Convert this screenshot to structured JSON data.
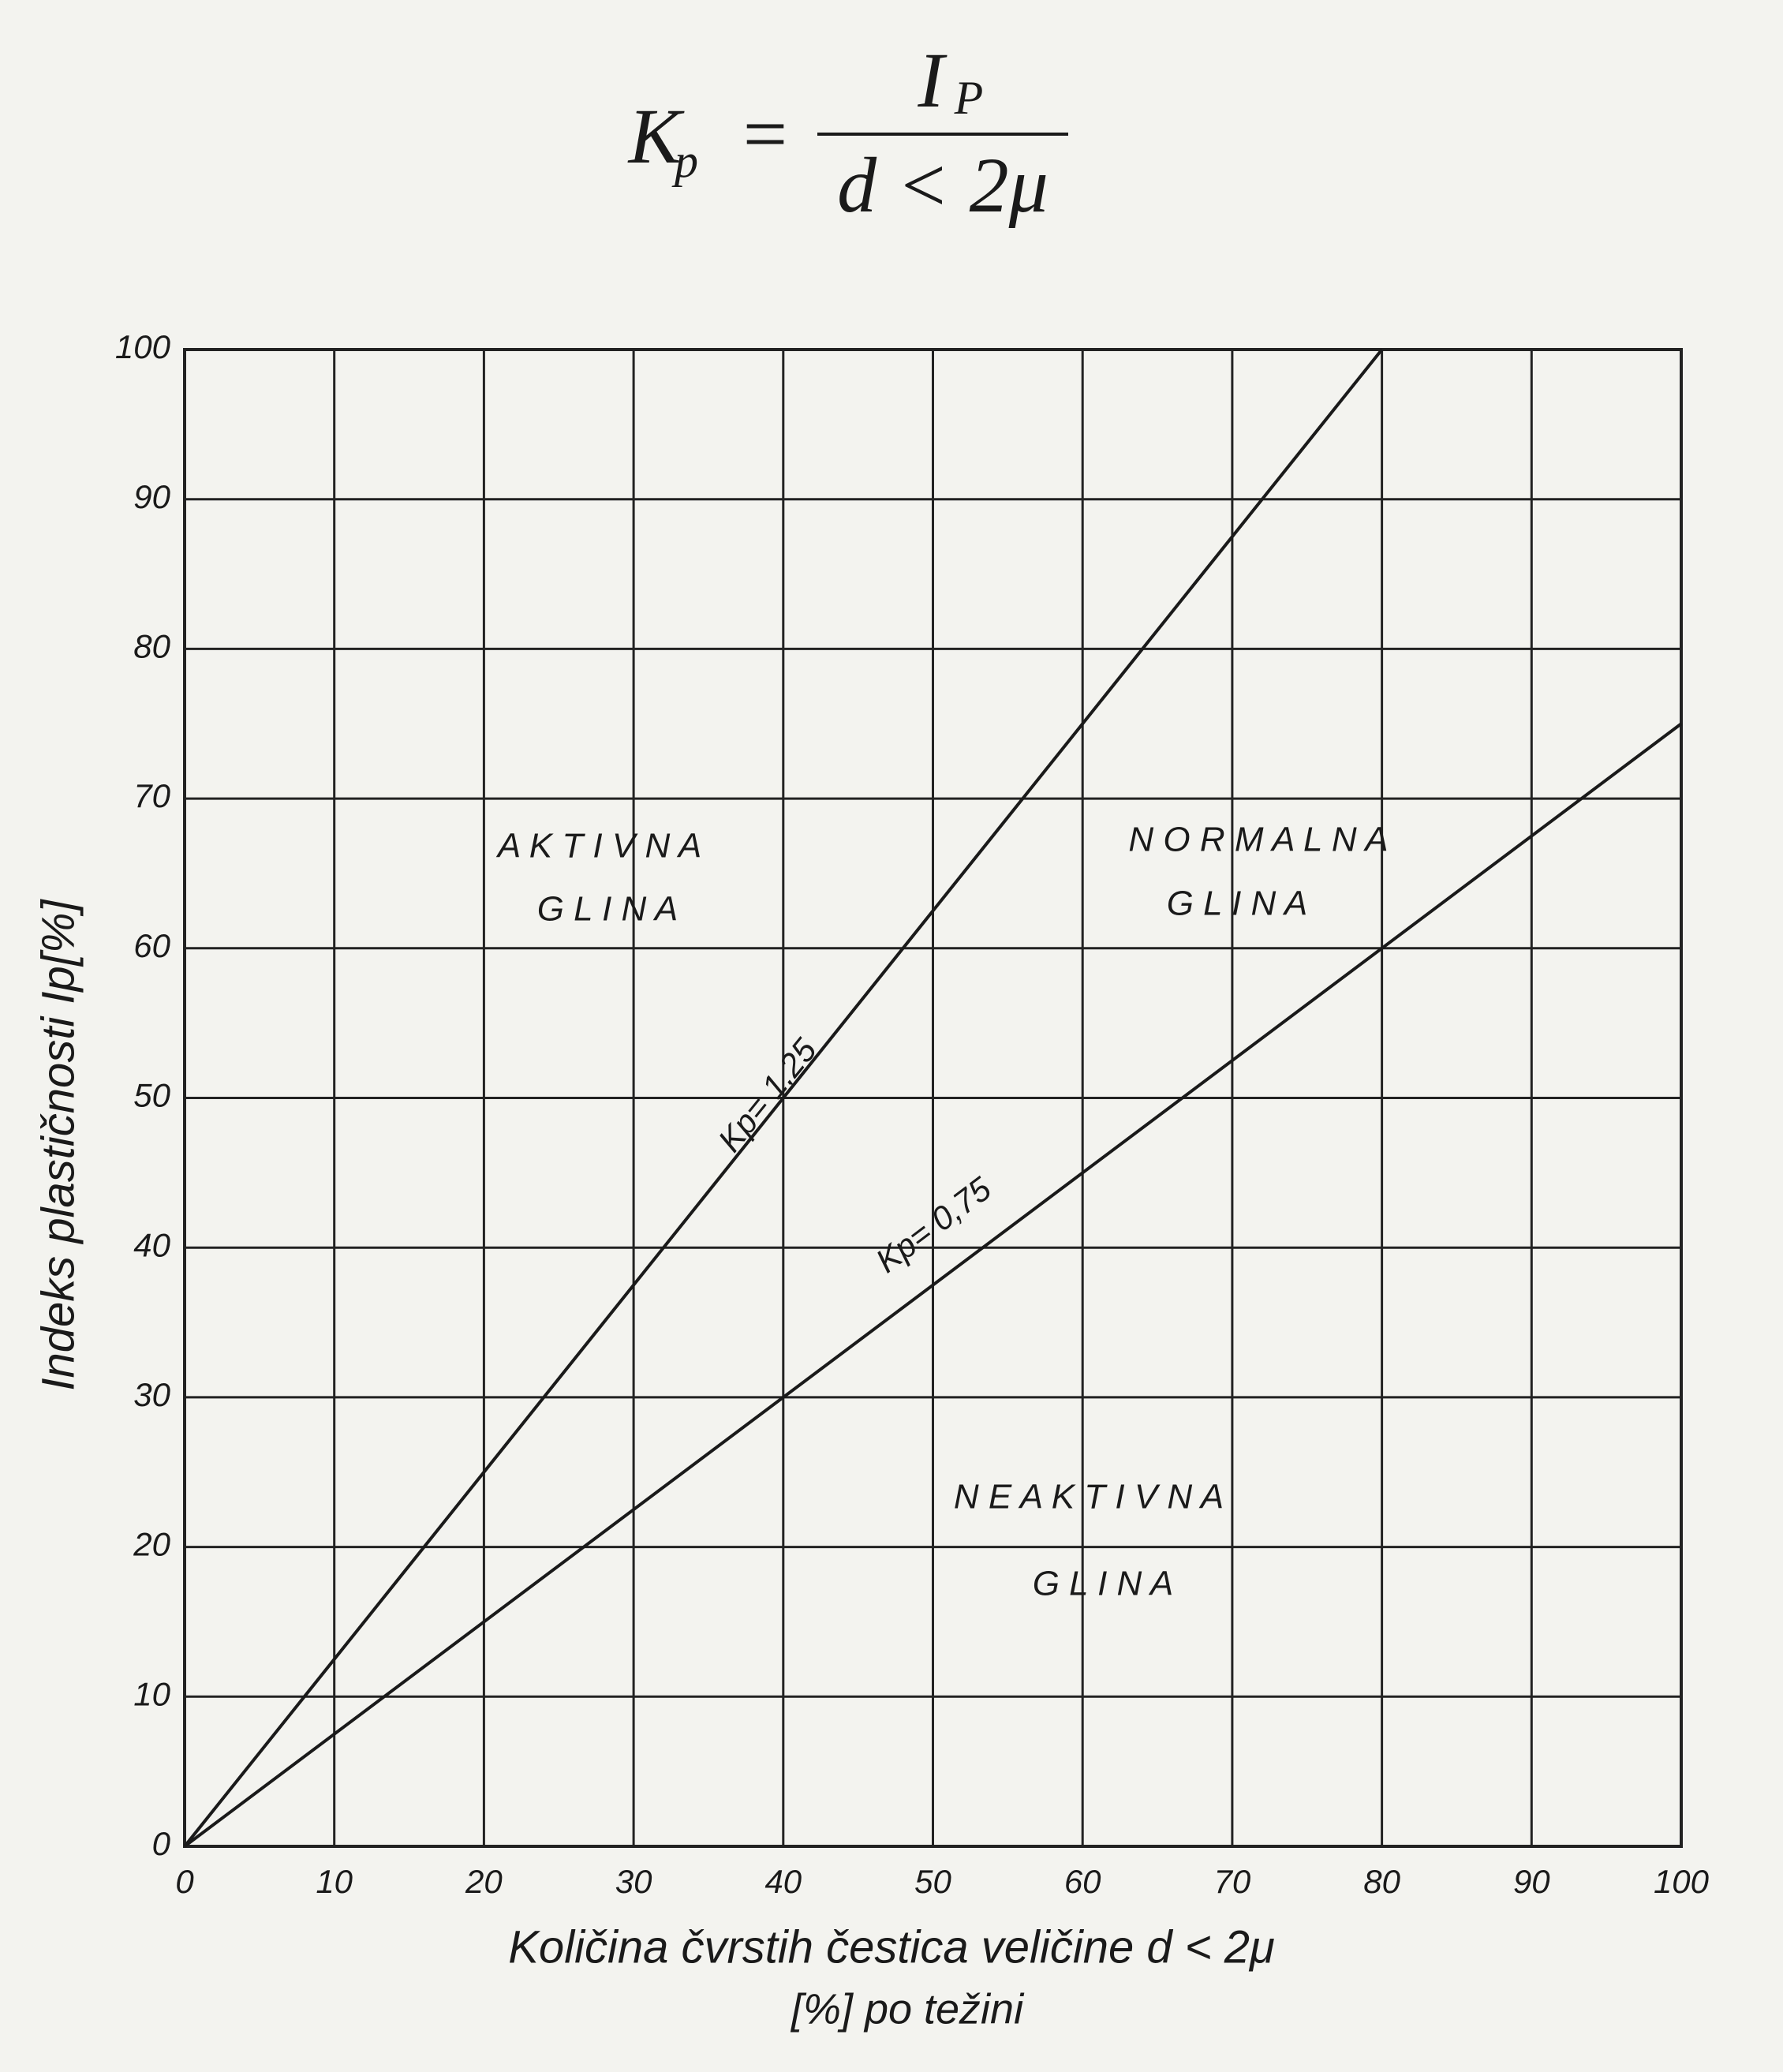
{
  "formula": {
    "lhs": "K",
    "lhs_sub": "p",
    "equals": "=",
    "numerator": "I",
    "numerator_sub": "P",
    "denominator": "d < 2μ"
  },
  "chart_data": {
    "type": "line",
    "y_label": "Indeks plastičnosti Ip[%]",
    "x_label": [
      "Količina čvrstih čestica veličine d < 2μ",
      "[%] po težini"
    ],
    "series": [
      {
        "name": "Kp= 1,25",
        "color": "#1a1a1a",
        "x": [
          0,
          80
        ],
        "values": [
          0,
          100
        ]
      },
      {
        "name": "Kp= 0,75",
        "color": "#1a1a1a",
        "x": [
          0,
          100
        ],
        "values": [
          0,
          75
        ]
      }
    ],
    "annotations": [
      "A K T I V N A",
      "G L I N A",
      "N O R M A L N A",
      "G L I N A",
      "N E A K T I V N A",
      "G L I N A"
    ],
    "xlim": [
      0,
      100
    ],
    "ylim": [
      0,
      100
    ],
    "xticks": [
      0,
      10,
      20,
      30,
      40,
      50,
      60,
      70,
      80,
      90,
      100
    ],
    "yticks": [
      0,
      10,
      20,
      30,
      40,
      50,
      60,
      70,
      80,
      90,
      100
    ],
    "grid": true
  }
}
